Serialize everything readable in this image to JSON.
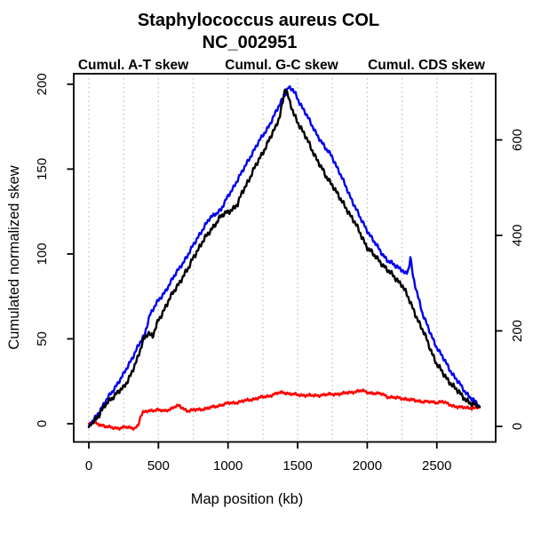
{
  "chart_data": {
    "type": "line",
    "title": "Staphylococcus aureus COL",
    "subtitle": "NC_002951",
    "xlabel": "Map position (kb)",
    "ylabel": "Cumulated normalized skew",
    "grid": true,
    "grid_style": "dotted-vertical",
    "grid_step_kb": 250,
    "grid_max_kb": 2750,
    "x_axis": {
      "ticks": [
        0,
        500,
        1000,
        1500,
        2000,
        2500
      ],
      "unit": "kb",
      "data_range": [
        0,
        2808
      ]
    },
    "y_axis_left": {
      "ticks": [
        0,
        50,
        100,
        150,
        200
      ]
    },
    "y_axis_right": {
      "ticks": [
        0,
        200,
        400,
        600
      ]
    },
    "legend_position": "top",
    "legend": [
      {
        "label": "Cumul. A-T skew",
        "color": "#ff0000"
      },
      {
        "label": "Cumul. G-C skew",
        "color": "#0000ee"
      },
      {
        "label": "Cumul. CDS skew",
        "color": "#000000"
      }
    ],
    "series": [
      {
        "name": "Cumul. A-T skew",
        "color": "#ff0000",
        "noise": 0.55,
        "points": [
          [
            0,
            0
          ],
          [
            30,
            1.5
          ],
          [
            60,
            0
          ],
          [
            100,
            -1
          ],
          [
            140,
            -2
          ],
          [
            180,
            -2.5
          ],
          [
            220,
            -2.5
          ],
          [
            260,
            -2
          ],
          [
            300,
            -2.5
          ],
          [
            330,
            -2.5
          ],
          [
            355,
            -1
          ],
          [
            370,
            4
          ],
          [
            390,
            6.5
          ],
          [
            420,
            7.5
          ],
          [
            460,
            8
          ],
          [
            500,
            8
          ],
          [
            540,
            7.5
          ],
          [
            580,
            8.5
          ],
          [
            620,
            10
          ],
          [
            650,
            10.5
          ],
          [
            680,
            9
          ],
          [
            710,
            7.5
          ],
          [
            750,
            8
          ],
          [
            800,
            8.5
          ],
          [
            850,
            9
          ],
          [
            900,
            10
          ],
          [
            950,
            11
          ],
          [
            1000,
            12
          ],
          [
            1060,
            12.5
          ],
          [
            1120,
            13.5
          ],
          [
            1180,
            14.5
          ],
          [
            1240,
            15.5
          ],
          [
            1300,
            16.5
          ],
          [
            1360,
            18
          ],
          [
            1400,
            18.5
          ],
          [
            1450,
            17.5
          ],
          [
            1500,
            17
          ],
          [
            1560,
            16.8
          ],
          [
            1620,
            16.5
          ],
          [
            1680,
            17
          ],
          [
            1740,
            17.3
          ],
          [
            1800,
            17.6
          ],
          [
            1860,
            18.2
          ],
          [
            1920,
            19
          ],
          [
            1960,
            19.5
          ],
          [
            2000,
            18.5
          ],
          [
            2060,
            17.8
          ],
          [
            2110,
            17.5
          ],
          [
            2150,
            15.8
          ],
          [
            2200,
            15.3
          ],
          [
            2250,
            15
          ],
          [
            2300,
            14.2
          ],
          [
            2350,
            13.6
          ],
          [
            2400,
            13.1
          ],
          [
            2450,
            12.8
          ],
          [
            2500,
            12.5
          ],
          [
            2540,
            13.2
          ],
          [
            2580,
            11.5
          ],
          [
            2620,
            10.5
          ],
          [
            2660,
            9.8
          ],
          [
            2700,
            9.4
          ],
          [
            2750,
            9.3
          ],
          [
            2808,
            9.5
          ]
        ]
      },
      {
        "name": "Cumul. G-C skew",
        "color": "#0000ee",
        "noise": 0.85,
        "points": [
          [
            0,
            -1.5
          ],
          [
            40,
            3
          ],
          [
            80,
            8
          ],
          [
            120,
            13
          ],
          [
            160,
            18
          ],
          [
            200,
            23
          ],
          [
            250,
            29
          ],
          [
            300,
            37
          ],
          [
            350,
            45
          ],
          [
            400,
            52
          ],
          [
            436,
            64
          ],
          [
            480,
            70
          ],
          [
            540,
            77
          ],
          [
            600,
            85
          ],
          [
            660,
            93
          ],
          [
            710,
            99
          ],
          [
            750,
            105
          ],
          [
            790,
            111
          ],
          [
            830,
            116
          ],
          [
            870,
            121
          ],
          [
            910,
            124
          ],
          [
            950,
            126
          ],
          [
            1000,
            134
          ],
          [
            1050,
            141
          ],
          [
            1100,
            148
          ],
          [
            1150,
            156
          ],
          [
            1200,
            163
          ],
          [
            1250,
            170
          ],
          [
            1290,
            175
          ],
          [
            1330,
            181
          ],
          [
            1370,
            188
          ],
          [
            1400,
            193
          ],
          [
            1435,
            198
          ],
          [
            1460,
            197
          ],
          [
            1485,
            194
          ],
          [
            1510,
            190
          ],
          [
            1550,
            184
          ],
          [
            1600,
            176
          ],
          [
            1650,
            169
          ],
          [
            1700,
            162
          ],
          [
            1745,
            158
          ],
          [
            1800,
            148
          ],
          [
            1850,
            139
          ],
          [
            1900,
            130
          ],
          [
            1950,
            121
          ],
          [
            2000,
            114
          ],
          [
            2050,
            107
          ],
          [
            2100,
            101
          ],
          [
            2150,
            96
          ],
          [
            2200,
            93
          ],
          [
            2250,
            91
          ],
          [
            2280,
            88
          ],
          [
            2298,
            91
          ],
          [
            2310,
            98
          ],
          [
            2330,
            86
          ],
          [
            2360,
            77
          ],
          [
            2400,
            64
          ],
          [
            2450,
            54
          ],
          [
            2500,
            45
          ],
          [
            2550,
            38
          ],
          [
            2600,
            31
          ],
          [
            2650,
            25
          ],
          [
            2700,
            19
          ],
          [
            2750,
            15
          ],
          [
            2808,
            10
          ]
        ]
      },
      {
        "name": "Cumul. CDS skew",
        "color": "#000000",
        "noise": 1.1,
        "points": [
          [
            0,
            -2
          ],
          [
            40,
            2
          ],
          [
            80,
            6
          ],
          [
            120,
            11
          ],
          [
            160,
            15
          ],
          [
            200,
            18
          ],
          [
            250,
            21
          ],
          [
            300,
            29
          ],
          [
            350,
            38
          ],
          [
            394,
            50
          ],
          [
            426,
            54
          ],
          [
            458,
            51
          ],
          [
            500,
            61
          ],
          [
            532,
            66
          ],
          [
            570,
            72
          ],
          [
            620,
            79
          ],
          [
            670,
            86
          ],
          [
            720,
            92
          ],
          [
            750,
            98
          ],
          [
            800,
            105
          ],
          [
            850,
            111
          ],
          [
            900,
            117
          ],
          [
            950,
            122
          ],
          [
            1000,
            125
          ],
          [
            1040,
            127
          ],
          [
            1070,
            129
          ],
          [
            1100,
            136
          ],
          [
            1150,
            144
          ],
          [
            1200,
            152
          ],
          [
            1250,
            160
          ],
          [
            1300,
            168
          ],
          [
            1340,
            174
          ],
          [
            1373,
            182
          ],
          [
            1395,
            191
          ],
          [
            1410,
            198
          ],
          [
            1425,
            194
          ],
          [
            1440,
            190
          ],
          [
            1470,
            183
          ],
          [
            1500,
            178
          ],
          [
            1550,
            170
          ],
          [
            1600,
            162
          ],
          [
            1650,
            154
          ],
          [
            1700,
            146
          ],
          [
            1750,
            141
          ],
          [
            1800,
            133
          ],
          [
            1850,
            127
          ],
          [
            1900,
            120
          ],
          [
            1950,
            112
          ],
          [
            2000,
            104
          ],
          [
            2050,
            99
          ],
          [
            2100,
            95
          ],
          [
            2150,
            90
          ],
          [
            2200,
            86
          ],
          [
            2250,
            82
          ],
          [
            2300,
            73
          ],
          [
            2340,
            66
          ],
          [
            2380,
            58
          ],
          [
            2420,
            51
          ],
          [
            2460,
            43
          ],
          [
            2500,
            35
          ],
          [
            2550,
            29
          ],
          [
            2600,
            24
          ],
          [
            2650,
            19
          ],
          [
            2700,
            15
          ],
          [
            2750,
            11.5
          ],
          [
            2808,
            10
          ]
        ]
      }
    ]
  }
}
